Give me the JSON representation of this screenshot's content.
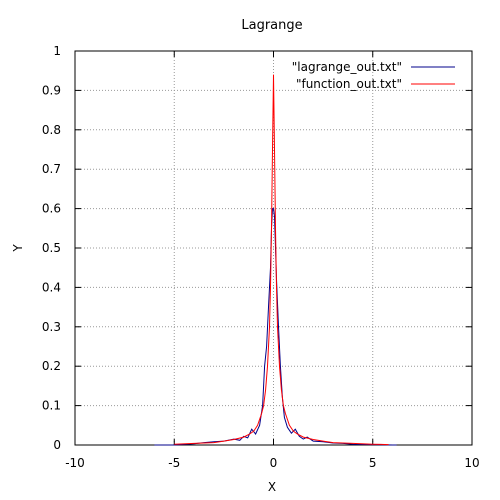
{
  "chart_data": {
    "type": "line",
    "title": "Lagrange",
    "xlabel": "X",
    "ylabel": "Y",
    "xlim": [
      -10,
      10
    ],
    "ylim": [
      0,
      1
    ],
    "xticks": [
      "-10",
      "-5",
      "0",
      "5",
      "10"
    ],
    "yticks": [
      "0",
      "0.1",
      "0.2",
      "0.3",
      "0.4",
      "0.5",
      "0.6",
      "0.7",
      "0.8",
      "0.9",
      "1"
    ],
    "grid": true,
    "legend_position": "top-right",
    "series": [
      {
        "name": "\"lagrange_out.txt\"",
        "color": "#00008b",
        "x": [
          -6,
          -5,
          -4,
          -3.5,
          -3,
          -2.5,
          -2,
          -1.7,
          -1.5,
          -1.3,
          -1.1,
          -0.9,
          -0.7,
          -0.55,
          -0.45,
          -0.35,
          -0.25,
          -0.15,
          -0.1,
          -0.05,
          0,
          0.05,
          0.1,
          0.15,
          0.25,
          0.35,
          0.45,
          0.55,
          0.7,
          0.9,
          1.1,
          1.3,
          1.5,
          1.7,
          2,
          2.5,
          3,
          3.5,
          4,
          5,
          6,
          6.2
        ],
        "y": [
          0.0,
          0.0,
          0.003,
          0.006,
          0.008,
          0.01,
          0.015,
          0.012,
          0.022,
          0.018,
          0.04,
          0.028,
          0.05,
          0.1,
          0.2,
          0.25,
          0.35,
          0.45,
          0.55,
          0.6,
          0.6,
          0.58,
          0.5,
          0.42,
          0.3,
          0.2,
          0.12,
          0.07,
          0.045,
          0.03,
          0.04,
          0.022,
          0.015,
          0.02,
          0.01,
          0.008,
          0.005,
          0.004,
          0.002,
          0.001,
          0.0,
          0.0
        ]
      },
      {
        "name": "\"function_out.txt\"",
        "color": "#ff0000",
        "x": [
          -5,
          -4,
          -3,
          -2.5,
          -2,
          -1.5,
          -1.2,
          -1,
          -0.8,
          -0.6,
          -0.5,
          -0.4,
          -0.3,
          -0.2,
          -0.15,
          -0.1,
          -0.05,
          0,
          0.05,
          0.1,
          0.15,
          0.2,
          0.3,
          0.4,
          0.5,
          0.6,
          0.8,
          1,
          1.2,
          1.5,
          2,
          2.5,
          3,
          4,
          5,
          5.8
        ],
        "y": [
          0.002,
          0.004,
          0.006,
          0.01,
          0.014,
          0.02,
          0.028,
          0.035,
          0.05,
          0.08,
          0.1,
          0.14,
          0.2,
          0.3,
          0.4,
          0.55,
          0.75,
          0.94,
          0.75,
          0.55,
          0.4,
          0.3,
          0.2,
          0.14,
          0.1,
          0.08,
          0.05,
          0.035,
          0.028,
          0.02,
          0.014,
          0.01,
          0.006,
          0.004,
          0.002,
          0.001
        ]
      }
    ]
  }
}
